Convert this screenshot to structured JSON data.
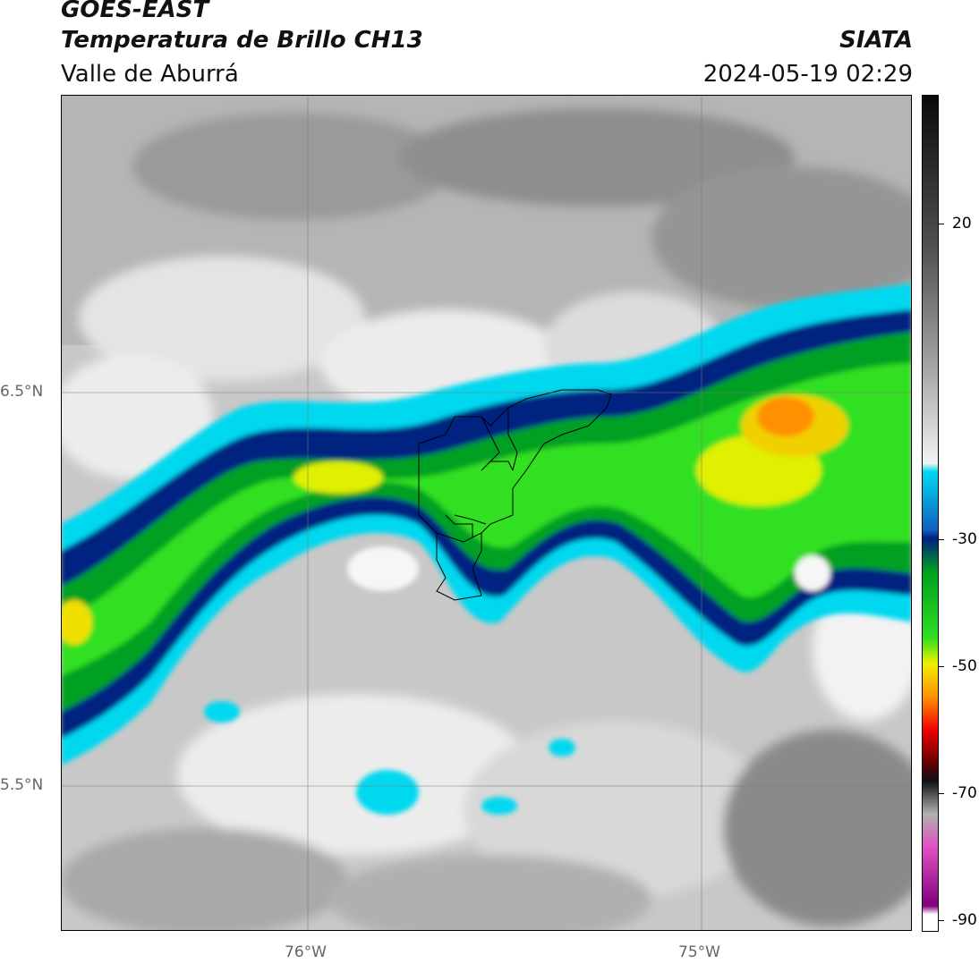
{
  "header": {
    "satellite": "GOES-EAST",
    "product": "Temperatura de Brillo CH13",
    "region": "Valle de Aburrá",
    "org": "SIATA",
    "datetime": "2024-05-19 02:29"
  },
  "axes": {
    "lat_labels": [
      "6.5°N",
      "5.5°N"
    ],
    "lon_labels": [
      "76°W",
      "75°W"
    ]
  },
  "colorbar": {
    "labels": [
      "20",
      "-30",
      "-50",
      "-70",
      "-90"
    ],
    "stops": [
      "#0a0a0a",
      "#505050",
      "#a8a8a8",
      "#f2f2f2",
      "#00d8f0",
      "#1060c0",
      "#002080",
      "#00a020",
      "#30e020",
      "#f0f000",
      "#ff9000",
      "#f00000",
      "#600000",
      "#101010",
      "#b0b0b0",
      "#e050c0",
      "#800080",
      "#ffffff"
    ]
  }
}
